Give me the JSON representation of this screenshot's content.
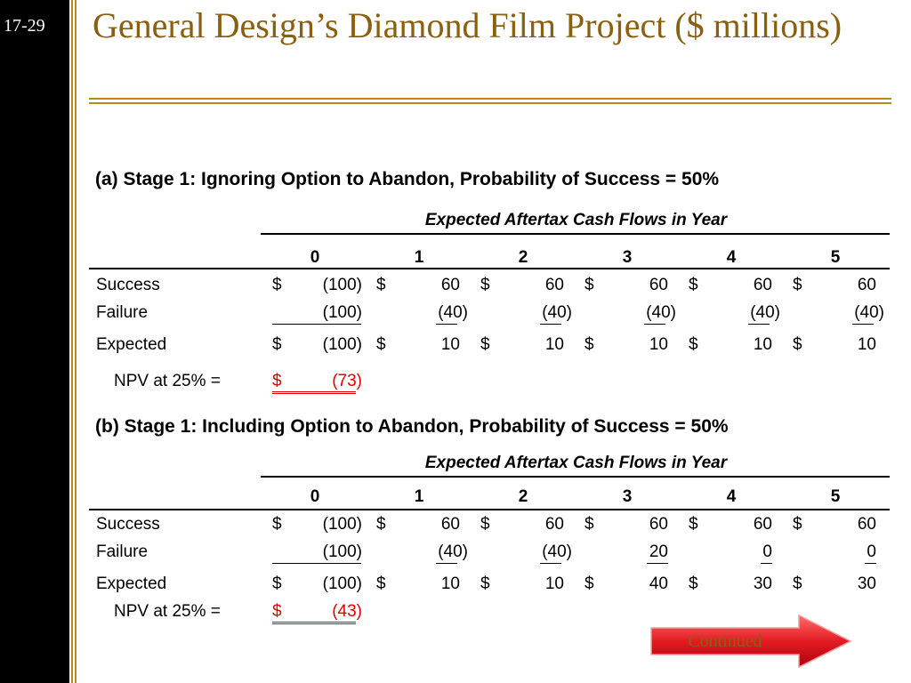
{
  "slide_number": "17-29",
  "title": "General Design’s Diamond Film Project ($ millions)",
  "section_a": {
    "heading": "(a) Stage 1: Ignoring Option to Abandon, Probability of Success = 50%",
    "caption": "Expected Aftertax Cash Flows in Year",
    "years": [
      "0",
      "1",
      "2",
      "3",
      "4",
      "5"
    ],
    "rows": [
      {
        "label": "Success",
        "values": [
          "(100)",
          "60",
          "60",
          "60",
          "60",
          "60"
        ]
      },
      {
        "label": "Failure",
        "values": [
          "(100)",
          "(40)",
          "(40)",
          "(40)",
          "(40)",
          "(40)"
        ]
      },
      {
        "label": "Expected",
        "values": [
          "(100)",
          "10",
          "10",
          "10",
          "10",
          "10"
        ]
      }
    ],
    "npv_label": "NPV at 25% =",
    "npv_value": "(73)"
  },
  "section_b": {
    "heading": "(b) Stage 1: Including Option to Abandon, Probability of Success = 50%",
    "caption": "Expected Aftertax Cash Flows in Year",
    "years": [
      "0",
      "1",
      "2",
      "3",
      "4",
      "5"
    ],
    "rows": [
      {
        "label": "Success",
        "values": [
          "(100)",
          "60",
          "60",
          "60",
          "60",
          "60"
        ]
      },
      {
        "label": "Failure",
        "values": [
          "(100)",
          "(40)",
          "(40)",
          "20",
          "0",
          "0"
        ]
      },
      {
        "label": "Expected",
        "values": [
          "(100)",
          "10",
          "10",
          "40",
          "30",
          "30"
        ]
      }
    ],
    "npv_label": "NPV at 25% =",
    "npv_value": "(43)"
  },
  "currency_symbol": "$",
  "continued_label": "Continued",
  "colors": {
    "accent": "#b88a1c",
    "title": "#8a6010",
    "npv": "#e00000",
    "arrow": "#e31b23"
  }
}
